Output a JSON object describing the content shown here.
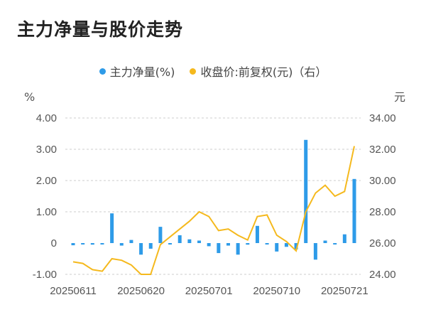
{
  "page": {
    "title": "主力净量与股价走势"
  },
  "colors": {
    "bar": "#2e9be8",
    "line": "#f5b91d",
    "grid": "#cccccc",
    "baseline": "#ffffff"
  },
  "chart_data": {
    "type": "bar",
    "legend": [
      {
        "label": "主力净量(%)",
        "color": "#2e9be8"
      },
      {
        "label": "收盘价:前复权(元)（右）",
        "color": "#f5b91d"
      }
    ],
    "left_axis": {
      "unit": "%",
      "min": -1,
      "max": 4,
      "ticks": [
        4,
        3,
        2,
        1,
        0,
        -1
      ],
      "tick_labels": [
        "4.00",
        "3.00",
        "2.00",
        "1.00",
        "0",
        "-1.00"
      ]
    },
    "right_axis": {
      "unit": "元",
      "min": 24,
      "max": 34,
      "ticks": [
        34,
        32,
        30,
        28,
        26,
        24
      ],
      "tick_labels": [
        "34.00",
        "32.00",
        "30.00",
        "28.00",
        "26.00",
        "24.00"
      ]
    },
    "x_labels": [
      {
        "label": "20250611",
        "index": 0
      },
      {
        "label": "20250620",
        "index": 7
      },
      {
        "label": "20250701",
        "index": 14
      },
      {
        "label": "20250710",
        "index": 21
      },
      {
        "label": "20250721",
        "index": 28
      }
    ],
    "series": [
      {
        "name": "主力净量(%)",
        "kind": "bar",
        "values": [
          -0.07,
          -0.02,
          -0.05,
          -0.03,
          0.95,
          -0.08,
          0.1,
          -0.37,
          -0.18,
          0.52,
          -0.02,
          0.25,
          0.12,
          0.08,
          -0.1,
          -0.32,
          -0.08,
          -0.37,
          -0.05,
          0.55,
          -0.03,
          -0.27,
          -0.12,
          -0.2,
          3.3,
          -0.53,
          0.08,
          -0.02,
          0.28,
          2.05
        ]
      },
      {
        "name": "收盘价:前复权(元)（右）",
        "kind": "line",
        "values": [
          24.8,
          24.7,
          24.3,
          24.2,
          25.0,
          24.9,
          24.6,
          24.0,
          24.0,
          25.9,
          26.4,
          26.9,
          27.4,
          28.0,
          27.7,
          26.8,
          26.9,
          26.5,
          26.2,
          27.7,
          27.8,
          26.5,
          26.1,
          25.5,
          28.0,
          29.2,
          29.7,
          29.0,
          29.3,
          32.2
        ]
      }
    ]
  }
}
